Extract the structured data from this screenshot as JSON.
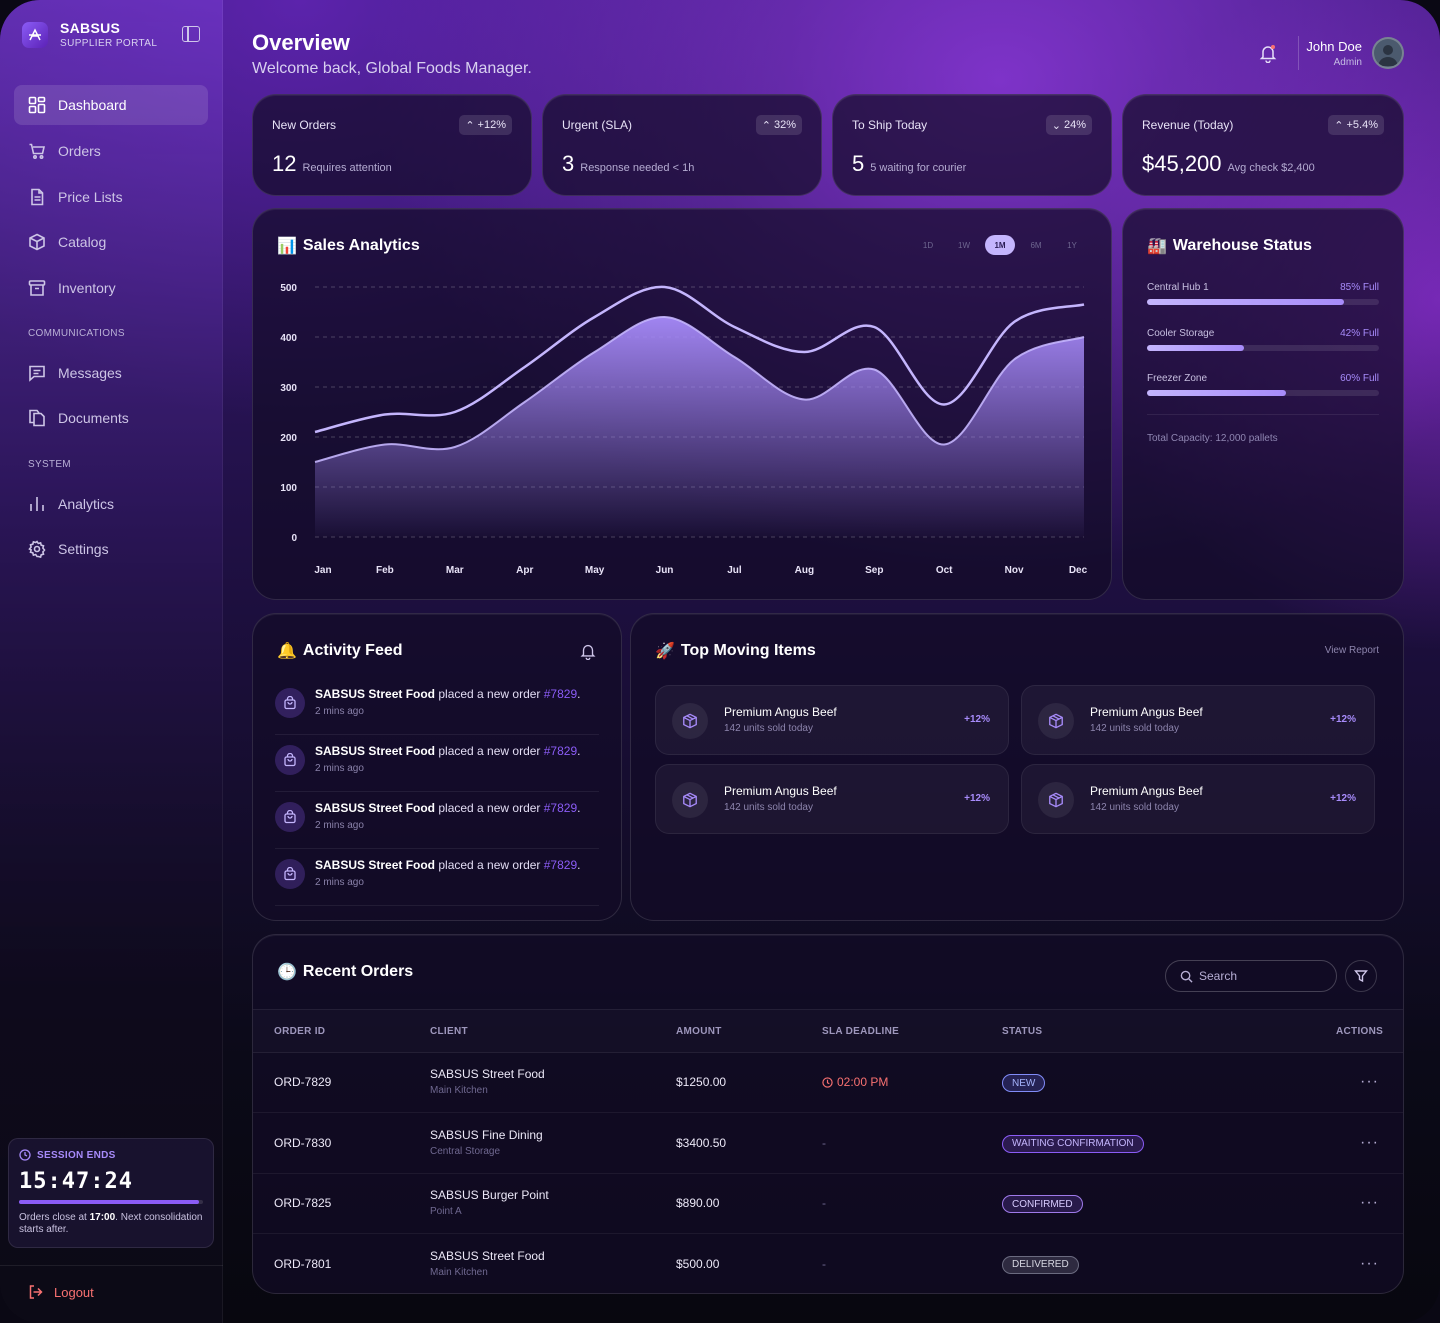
{
  "brand": {
    "name": "SABSUS",
    "subtitle": "SUPPLIER PORTAL"
  },
  "nav": {
    "main": [
      {
        "label": "Dashboard",
        "icon": "dashboard-icon",
        "active": true
      },
      {
        "label": "Orders",
        "icon": "cart-icon"
      },
      {
        "label": "Price Lists",
        "icon": "file-icon"
      },
      {
        "label": "Catalog",
        "icon": "box-icon"
      },
      {
        "label": "Inventory",
        "icon": "archive-icon"
      }
    ],
    "communications_label": "COMMUNICATIONS",
    "communications": [
      {
        "label": "Messages",
        "icon": "message-icon"
      },
      {
        "label": "Documents",
        "icon": "documents-icon"
      }
    ],
    "system_label": "SYSTEM",
    "system": [
      {
        "label": "Analytics",
        "icon": "analytics-icon"
      },
      {
        "label": "Settings",
        "icon": "gear-icon"
      }
    ]
  },
  "session": {
    "label": "SESSION ENDS",
    "time": "15:47:24",
    "progress": 0.98,
    "note_prefix": "Orders close at ",
    "note_time": "17:00",
    "note_suffix": ". Next consolidation starts after."
  },
  "logout": "Logout",
  "header": {
    "title": "Overview",
    "subtitle": "Welcome back, Global Foods Manager."
  },
  "user": {
    "name": "John Doe",
    "role": "Admin"
  },
  "stats": [
    {
      "title": "New Orders",
      "badge": "+12%",
      "trend": "up",
      "value": "12",
      "note": "Requires attention"
    },
    {
      "title": "Urgent (SLA)",
      "badge": "32%",
      "trend": "up",
      "value": "3",
      "note": "Response needed < 1h"
    },
    {
      "title": "To Ship Today",
      "badge": "24%",
      "trend": "down",
      "value": "5",
      "note": "5 waiting for courier"
    },
    {
      "title": "Revenue (Today)",
      "badge": "+5.4%",
      "trend": "up",
      "value": "$45,200",
      "note": "Avg check $2,400"
    }
  ],
  "sales": {
    "title": "Sales Analytics",
    "ranges": [
      "1D",
      "1W",
      "1M",
      "6M",
      "1Y"
    ],
    "active_range": "1M"
  },
  "chart_data": {
    "type": "area",
    "categories": [
      "Jan",
      "Feb",
      "Mar",
      "Apr",
      "May",
      "Jun",
      "Jul",
      "Aug",
      "Sep",
      "Oct",
      "Nov",
      "Dec"
    ],
    "series": [
      {
        "values": [
          210,
          245,
          250,
          340,
          440,
          500,
          420,
          370,
          420,
          265,
          430,
          465
        ]
      },
      {
        "values": [
          150,
          185,
          180,
          270,
          370,
          440,
          360,
          275,
          335,
          185,
          355,
          400
        ]
      }
    ],
    "yticks": [
      0,
      100,
      200,
      300,
      400,
      500
    ],
    "ylim": [
      0,
      500
    ],
    "grid": true,
    "colors": {
      "line": "#c4b5fd",
      "area": "#a78bfa"
    }
  },
  "warehouse": {
    "title": "Warehouse Status",
    "zones": [
      {
        "name": "Central Hub 1",
        "label": "85% Full",
        "pct": 85
      },
      {
        "name": "Cooler Storage",
        "label": "42% Full",
        "pct": 42
      },
      {
        "name": "Freezer Zone",
        "label": "60% Full",
        "pct": 60
      }
    ],
    "capacity": "Total Capacity: 12,000 pallets"
  },
  "activity": {
    "title": "Activity Feed",
    "items": [
      {
        "client": "SABSUS Street Food",
        "action": " placed a new order ",
        "order": "#7829",
        "end": ".",
        "ago": "2 mins ago"
      },
      {
        "client": "SABSUS Street Food",
        "action": " placed a new order ",
        "order": "#7829",
        "end": ".",
        "ago": "2 mins ago"
      },
      {
        "client": "SABSUS Street Food",
        "action": " placed a new order ",
        "order": "#7829",
        "end": ".",
        "ago": "2 mins ago"
      },
      {
        "client": "SABSUS Street Food",
        "action": " placed a new order ",
        "order": "#7829",
        "end": ".",
        "ago": "2 mins ago"
      }
    ]
  },
  "top_items": {
    "title": "Top Moving Items",
    "view_report": "View Report",
    "items": [
      {
        "name": "Premium Angus Beef",
        "sub": "142 units sold today",
        "change": "+12%"
      },
      {
        "name": "Premium Angus Beef",
        "sub": "142 units sold today",
        "change": "+12%"
      },
      {
        "name": "Premium Angus Beef",
        "sub": "142 units sold today",
        "change": "+12%"
      },
      {
        "name": "Premium Angus Beef",
        "sub": "142 units sold today",
        "change": "+12%"
      }
    ]
  },
  "orders": {
    "title": "Recent Orders",
    "search_placeholder": "Search",
    "columns": [
      "ORDER ID",
      "CLIENT",
      "AMOUNT",
      "SLA DEADLINE",
      "STATUS",
      "ACTIONS"
    ],
    "rows": [
      {
        "id": "ORD-7829",
        "client": "SABSUS Street Food",
        "location": "Main Kitchen",
        "amount": "$1250.00",
        "sla": "02:00 PM",
        "status": "NEW",
        "status_kind": "new"
      },
      {
        "id": "ORD-7830",
        "client": "SABSUS Fine Dining",
        "location": "Central Storage",
        "amount": "$3400.50",
        "sla": "-",
        "status": "WAITING CONFIRMATION",
        "status_kind": "wait"
      },
      {
        "id": "ORD-7825",
        "client": "SABSUS Burger Point",
        "location": "Point A",
        "amount": "$890.00",
        "sla": "-",
        "status": "CONFIRMED",
        "status_kind": "conf"
      },
      {
        "id": "ORD-7801",
        "client": "SABSUS Street Food",
        "location": "Main Kitchen",
        "amount": "$500.00",
        "sla": "-",
        "status": "DELIVERED",
        "status_kind": "del"
      }
    ],
    "actions_glyph": "···"
  }
}
